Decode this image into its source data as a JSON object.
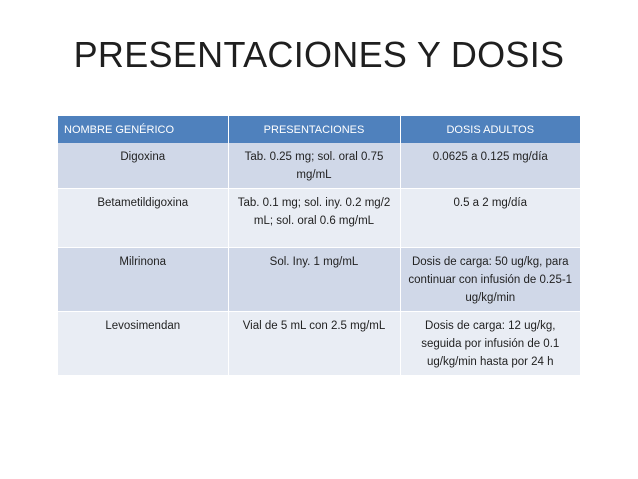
{
  "slide": {
    "title": "PRESENTACIONES Y DOSIS"
  },
  "table": {
    "headers": [
      "NOMBRE GENÉRICO",
      "PRESENTACIONES",
      "DOSIS ADULTOS"
    ],
    "rows": [
      [
        "Digoxina",
        "Tab. 0.25 mg; sol. oral 0.75 mg/mL",
        "0.0625 a 0.125 mg/día"
      ],
      [
        "Betametildigoxina",
        "Tab. 0.1 mg; sol. iny. 0.2 mg/2 mL; sol. oral 0.6 mg/mL",
        "0.5 a 2 mg/día"
      ],
      [
        "Milrinona",
        "Sol. Iny. 1 mg/mL",
        "Dosis de carga: 50 ug/kg, para continuar con infusión de 0.25-1 ug/kg/min"
      ],
      [
        "Levosimendan",
        "Vial de 5 mL con 2.5 mg/mL",
        "Dosis de carga: 12 ug/kg, seguida por infusión de 0.1 ug/kg/min hasta por 24 h"
      ]
    ],
    "colors": {
      "header_bg": "#4f81bd",
      "row_shade": "#d0d8e8",
      "row_light": "#e9edf4"
    }
  }
}
